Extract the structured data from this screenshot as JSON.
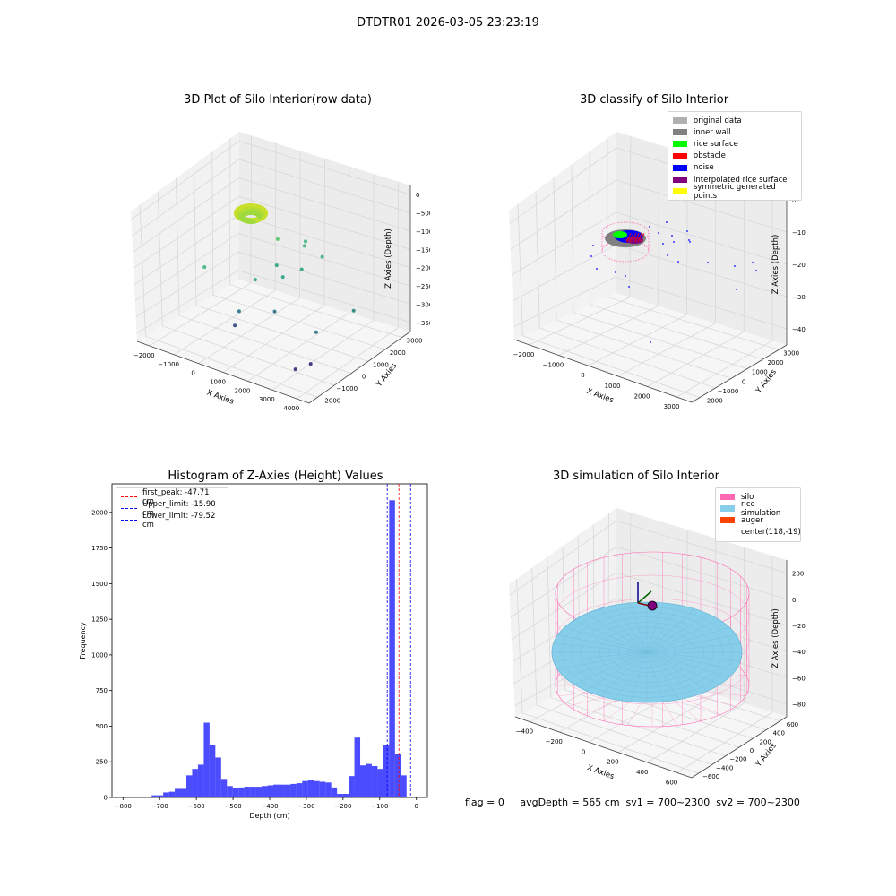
{
  "figure": {
    "suptitle": "DTDTR01 2026-03-05 23:23:19",
    "footer": "flag = 0     avgDepth = 565 cm  sv1 = 700~2300  sv2 = 700~2300"
  },
  "chart_data": [
    {
      "type": "scatter",
      "projection": "3d",
      "title": "3D Plot of Silo Interior(row data)",
      "xlabel": "X Axies",
      "ylabel": "Y Axies",
      "zlabel": "Z Axies (Depth)",
      "x_ticks": [
        "−2000",
        "−1000",
        "0",
        "1000",
        "2000",
        "3000",
        "4000"
      ],
      "y_ticks": [
        "−2000",
        "−1000",
        "0",
        "1000",
        "2000",
        "3000"
      ],
      "z_ticks": [
        "0",
        "−500",
        "−1000",
        "−1500",
        "−2000",
        "−2500",
        "−3000",
        "−3500"
      ],
      "xlim": [
        -2300,
        4200
      ],
      "ylim": [
        -2300,
        3300
      ],
      "zlim": [
        -3700,
        150
      ],
      "colormap": "viridis (by depth)",
      "points": [
        {
          "x": 1100,
          "y": 500,
          "z": -1000
        },
        {
          "x": 1700,
          "y": 1100,
          "z": -1200
        },
        {
          "x": 1400,
          "y": 1600,
          "z": -1300
        },
        {
          "x": 1200,
          "y": 300,
          "z": -1600
        },
        {
          "x": 1800,
          "y": 800,
          "z": -1700
        },
        {
          "x": 2100,
          "y": 1500,
          "z": -1500
        },
        {
          "x": 800,
          "y": -300,
          "z": -1900
        },
        {
          "x": 1500,
          "y": 200,
          "z": -1800
        },
        {
          "x": 3900,
          "y": 600,
          "z": -2200
        },
        {
          "x": 1600,
          "y": -400,
          "z": -2500
        },
        {
          "x": 600,
          "y": -900,
          "z": -2600
        },
        {
          "x": 3100,
          "y": -300,
          "z": -2700
        },
        {
          "x": 300,
          "y": -700,
          "z": -3100
        },
        {
          "x": 3300,
          "y": -900,
          "z": -3300
        },
        {
          "x": 3000,
          "y": -1300,
          "z": -3400
        },
        {
          "x": -300,
          "y": -1500,
          "z": -1500
        }
      ]
    },
    {
      "type": "scatter",
      "projection": "3d",
      "title": "3D classify of Silo Interior",
      "xlabel": "X Axies",
      "ylabel": "Y Axies",
      "zlabel": "Z Axies (Depth)",
      "x_ticks": [
        "−2000",
        "−1000",
        "0",
        "1000",
        "2000",
        "3000"
      ],
      "y_ticks": [
        "−2000",
        "−1000",
        "0",
        "1000",
        "2000",
        "3000"
      ],
      "z_ticks": [
        "0",
        "−1000",
        "−2000",
        "−3000",
        "−4000"
      ],
      "z_ticks_partial": [
        "00"
      ],
      "xlim": [
        -2300,
        3700
      ],
      "ylim": [
        -2300,
        3300
      ],
      "zlim": [
        -4300,
        900
      ],
      "legend": [
        {
          "label": "original data",
          "color": "#b0b0b0"
        },
        {
          "label": "inner wall",
          "color": "#808080"
        },
        {
          "label": "rice surface",
          "color": "#00ff00"
        },
        {
          "label": "obstacle",
          "color": "#ff0000"
        },
        {
          "label": "noise",
          "color": "#0000ff"
        },
        {
          "label": "interpolated rice surface",
          "color": "#800080"
        },
        {
          "label": "symmetric generated points",
          "color": "#ffff00"
        }
      ]
    },
    {
      "type": "histogram",
      "title": "Histogram of Z-Axies (Height) Values",
      "xlabel": "Depth (cm)",
      "ylabel": "Frequency",
      "xlim": [
        -830,
        30
      ],
      "ylim": [
        0,
        2200
      ],
      "x_ticks": [
        -800,
        -700,
        -600,
        -500,
        -400,
        -300,
        -200,
        -100,
        0
      ],
      "y_ticks": [
        0,
        250,
        500,
        750,
        1000,
        1250,
        1500,
        1750,
        2000
      ],
      "bar_color": "#0000ff",
      "bin_width": 15.8,
      "bin_starts": [
        -722,
        -706.2,
        -690.4,
        -674.6,
        -658.8,
        -643,
        -627.2,
        -611.4,
        -595.6,
        -579.8,
        -564,
        -548.2,
        -532.4,
        -516.6,
        -500.8,
        -485,
        -469.2,
        -453.4,
        -437.6,
        -421.8,
        -406,
        -390.2,
        -374.4,
        -358.6,
        -342.8,
        -327,
        -311.2,
        -295.4,
        -279.6,
        -263.8,
        -248,
        -232.2,
        -216.4,
        -200.6,
        -184.8,
        -169,
        -153.2,
        -137.4,
        -121.6,
        -105.8,
        -90,
        -74.2,
        -58.4,
        -42.6,
        -26.8,
        -11
      ],
      "counts": [
        15,
        15,
        35,
        40,
        60,
        60,
        155,
        200,
        230,
        525,
        370,
        280,
        130,
        80,
        65,
        70,
        75,
        75,
        75,
        80,
        85,
        90,
        90,
        90,
        95,
        100,
        115,
        120,
        115,
        110,
        105,
        70,
        25,
        25,
        150,
        420,
        225,
        235,
        220,
        200,
        370,
        2085,
        305,
        155,
        0,
        0
      ],
      "lines": [
        {
          "label": "first_peak: -47.71 cm",
          "value": -47.71,
          "color": "#ff0000"
        },
        {
          "label": "Upper_limit: -15.90 cm",
          "value": -15.9,
          "color": "#0000ff"
        },
        {
          "label": "Lower_limit: -79.52 cm",
          "value": -79.52,
          "color": "#0000ff"
        }
      ]
    },
    {
      "type": "surface",
      "projection": "3d",
      "title": "3D simulation of Silo Interior",
      "xlabel": "X Axies",
      "ylabel": "Y Axies",
      "zlabel": "Z Axies (Depth)",
      "x_ticks": [
        "−400",
        "−200",
        "0",
        "200",
        "400",
        "600"
      ],
      "y_ticks": [
        "−600",
        "−400",
        "−200",
        "0",
        "200",
        "400",
        "600"
      ],
      "z_ticks": [
        "200",
        "0",
        "−200",
        "−400",
        "−600",
        "−800"
      ],
      "xlim": [
        -520,
        720
      ],
      "ylim": [
        -700,
        640
      ],
      "zlim": [
        -950,
        300
      ],
      "legend": [
        {
          "label": "silo",
          "color": "#ff69b4"
        },
        {
          "label": "rice simulation",
          "color": "#87ceeb"
        },
        {
          "label": "auger",
          "color": "#ff4500"
        },
        {
          "label": "center(118,-19)",
          "color": ""
        }
      ],
      "silo_radius": 600,
      "silo_top": 0,
      "silo_bottom": -900,
      "rice_level": -520,
      "center": {
        "x": 118,
        "y": -19
      }
    }
  ]
}
